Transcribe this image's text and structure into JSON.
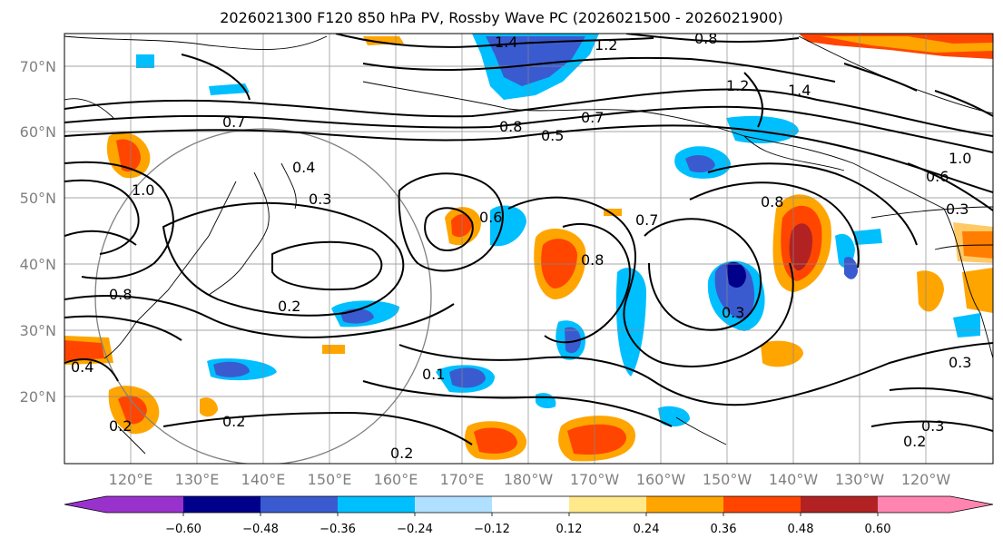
{
  "title": "2026021300 F120 850 hPa PV, Rossby Wave PC (2026021500 - 2026021900)",
  "lat_labels": [
    "70°N",
    "60°N",
    "50°N",
    "40°N",
    "30°N",
    "20°N"
  ],
  "lon_labels": [
    "120°E",
    "130°E",
    "140°E",
    "150°E",
    "160°E",
    "170°E",
    "180°W",
    "170°W",
    "160°W",
    "150°W",
    "140°W",
    "130°W",
    "120°W"
  ],
  "colorbar": {
    "colors": [
      "#9932cc",
      "#00008b",
      "#3a5bd0",
      "#00bfff",
      "#b0e0ff",
      "#ffffff",
      "#ffe98a",
      "#ffa500",
      "#ff4500",
      "#b22222",
      "#ff85b0"
    ],
    "tick_labels": [
      "−0.60",
      "−0.48",
      "−0.36",
      "−0.24",
      "−0.12",
      "0.12",
      "0.24",
      "0.36",
      "0.48",
      "0.60"
    ]
  },
  "contour_labels": [
    "1.4",
    "1.2",
    "0.8",
    "1.2",
    "1.4",
    "0.7",
    "0.8",
    "0.5",
    "1.0",
    "1.0",
    "0.4",
    "0.3",
    "0.7",
    "0.6",
    "0.7",
    "0.8",
    "0.8",
    "0.3",
    "0.8",
    "0.3",
    "0.2",
    "0.2",
    "0.2",
    "0.2",
    "0.3",
    "0.2",
    "0.6",
    "0.4",
    "0.3",
    "0.1"
  ]
}
